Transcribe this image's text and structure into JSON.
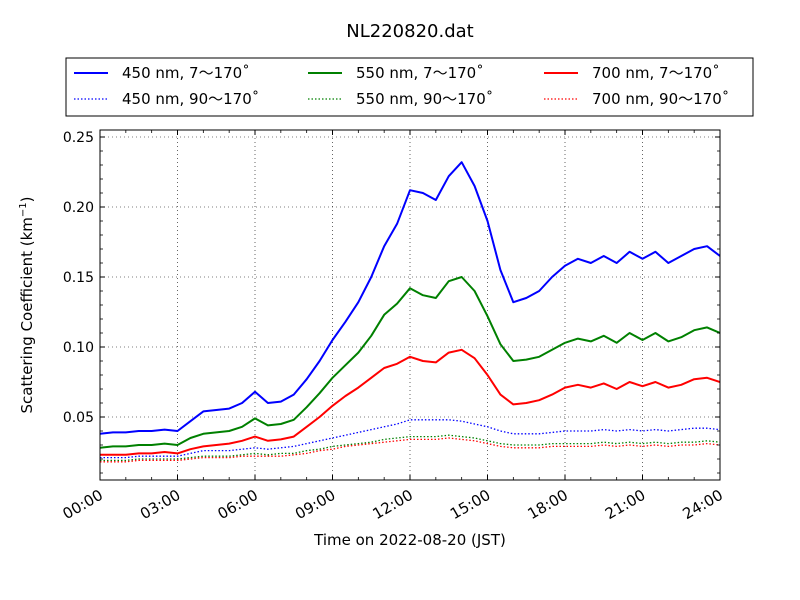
{
  "chart_data": {
    "type": "line",
    "title": "NL220820.dat",
    "xlabel": "Time on 2022-08-20 (JST)",
    "ylabel_main": "Scattering Coefficient (km",
    "ylabel_sup": "−1",
    "ylabel_close": ")",
    "x_unit": "hours",
    "xlim": [
      0,
      24
    ],
    "ylim": [
      0.005,
      0.255
    ],
    "x_ticks": [
      0,
      3,
      6,
      9,
      12,
      15,
      18,
      21,
      24
    ],
    "x_tick_labels": [
      "00:00",
      "03:00",
      "06:00",
      "09:00",
      "12:00",
      "15:00",
      "18:00",
      "21:00",
      "24:00"
    ],
    "y_ticks": [
      0.05,
      0.1,
      0.15,
      0.2,
      0.25
    ],
    "y_tick_labels": [
      "0.05",
      "0.10",
      "0.15",
      "0.20",
      "0.25"
    ],
    "grid": true,
    "legend_position": "top-center",
    "x": [
      0,
      0.5,
      1,
      1.5,
      2,
      2.5,
      3,
      3.5,
      4,
      4.5,
      5,
      5.5,
      6,
      6.5,
      7,
      7.5,
      8,
      8.5,
      9,
      9.5,
      10,
      10.5,
      11,
      11.5,
      12,
      12.5,
      13,
      13.5,
      14,
      14.5,
      15,
      15.5,
      16,
      16.5,
      17,
      17.5,
      18,
      18.5,
      19,
      19.5,
      20,
      20.5,
      21,
      21.5,
      22,
      22.5,
      23,
      23.5,
      24
    ],
    "series": [
      {
        "name": "450 nm, 7～170˚",
        "color": "#0000ff",
        "style": "solid",
        "values": [
          0.038,
          0.039,
          0.039,
          0.04,
          0.04,
          0.041,
          0.04,
          0.047,
          0.054,
          0.055,
          0.056,
          0.06,
          0.068,
          0.06,
          0.061,
          0.066,
          0.077,
          0.09,
          0.105,
          0.118,
          0.132,
          0.15,
          0.172,
          0.188,
          0.212,
          0.21,
          0.205,
          0.222,
          0.232,
          0.215,
          0.19,
          0.155,
          0.132,
          0.135,
          0.14,
          0.15,
          0.158,
          0.163,
          0.16,
          0.165,
          0.16,
          0.168,
          0.163,
          0.168,
          0.16,
          0.165,
          0.17,
          0.172,
          0.165
        ]
      },
      {
        "name": "550 nm, 7～170˚",
        "color": "#008000",
        "style": "solid",
        "values": [
          0.028,
          0.029,
          0.029,
          0.03,
          0.03,
          0.031,
          0.03,
          0.035,
          0.038,
          0.039,
          0.04,
          0.043,
          0.049,
          0.044,
          0.045,
          0.048,
          0.057,
          0.067,
          0.078,
          0.087,
          0.096,
          0.108,
          0.123,
          0.131,
          0.142,
          0.137,
          0.135,
          0.147,
          0.15,
          0.14,
          0.122,
          0.102,
          0.09,
          0.091,
          0.093,
          0.098,
          0.103,
          0.106,
          0.104,
          0.108,
          0.103,
          0.11,
          0.105,
          0.11,
          0.104,
          0.107,
          0.112,
          0.114,
          0.11
        ]
      },
      {
        "name": "700 nm, 7～170˚",
        "color": "#ff0000",
        "style": "solid",
        "values": [
          0.023,
          0.023,
          0.023,
          0.024,
          0.024,
          0.025,
          0.024,
          0.027,
          0.029,
          0.03,
          0.031,
          0.033,
          0.036,
          0.033,
          0.034,
          0.036,
          0.043,
          0.05,
          0.058,
          0.065,
          0.071,
          0.078,
          0.085,
          0.088,
          0.093,
          0.09,
          0.089,
          0.096,
          0.098,
          0.092,
          0.08,
          0.066,
          0.059,
          0.06,
          0.062,
          0.066,
          0.071,
          0.073,
          0.071,
          0.074,
          0.07,
          0.075,
          0.072,
          0.075,
          0.071,
          0.073,
          0.077,
          0.078,
          0.075
        ]
      },
      {
        "name": "450 nm, 90～170˚",
        "color": "#0000ff",
        "style": "dotted",
        "values": [
          0.021,
          0.021,
          0.021,
          0.022,
          0.022,
          0.022,
          0.022,
          0.024,
          0.026,
          0.026,
          0.026,
          0.027,
          0.028,
          0.027,
          0.028,
          0.029,
          0.031,
          0.033,
          0.035,
          0.037,
          0.039,
          0.041,
          0.043,
          0.045,
          0.048,
          0.048,
          0.048,
          0.048,
          0.047,
          0.045,
          0.043,
          0.04,
          0.038,
          0.038,
          0.038,
          0.039,
          0.04,
          0.04,
          0.04,
          0.041,
          0.04,
          0.041,
          0.04,
          0.041,
          0.04,
          0.041,
          0.042,
          0.042,
          0.041
        ]
      },
      {
        "name": "550 nm, 90～170˚",
        "color": "#008000",
        "style": "dotted",
        "values": [
          0.019,
          0.019,
          0.019,
          0.02,
          0.02,
          0.02,
          0.02,
          0.021,
          0.022,
          0.022,
          0.022,
          0.023,
          0.024,
          0.023,
          0.024,
          0.024,
          0.026,
          0.027,
          0.029,
          0.03,
          0.031,
          0.032,
          0.034,
          0.035,
          0.036,
          0.036,
          0.036,
          0.037,
          0.036,
          0.035,
          0.033,
          0.031,
          0.03,
          0.03,
          0.03,
          0.031,
          0.031,
          0.031,
          0.031,
          0.032,
          0.031,
          0.032,
          0.031,
          0.032,
          0.031,
          0.032,
          0.032,
          0.033,
          0.032
        ]
      },
      {
        "name": "700 nm, 90～170˚",
        "color": "#ff0000",
        "style": "dotted",
        "values": [
          0.018,
          0.018,
          0.018,
          0.019,
          0.019,
          0.019,
          0.019,
          0.02,
          0.021,
          0.021,
          0.021,
          0.022,
          0.022,
          0.022,
          0.022,
          0.023,
          0.024,
          0.026,
          0.027,
          0.029,
          0.03,
          0.031,
          0.032,
          0.033,
          0.034,
          0.034,
          0.034,
          0.035,
          0.034,
          0.033,
          0.031,
          0.029,
          0.028,
          0.028,
          0.028,
          0.029,
          0.029,
          0.029,
          0.029,
          0.03,
          0.029,
          0.03,
          0.029,
          0.03,
          0.029,
          0.03,
          0.03,
          0.031,
          0.03
        ]
      }
    ]
  }
}
